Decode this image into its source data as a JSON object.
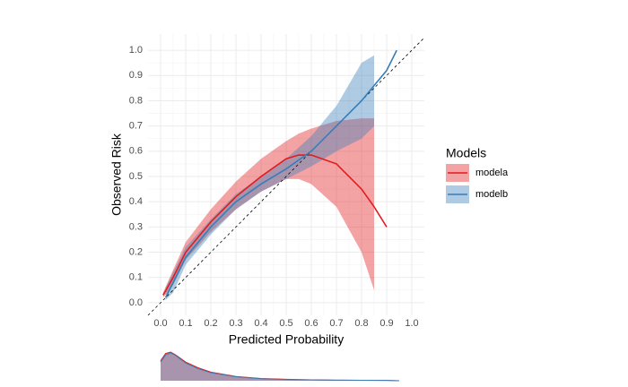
{
  "chart_data": {
    "type": "line",
    "x_label": "Predicted Probability",
    "y_label": "Observed Risk",
    "legend_title": "Models",
    "legend": "right",
    "grid": true,
    "xlim": [
      -0.05,
      1.05
    ],
    "ylim": [
      -0.05,
      1.05
    ],
    "xticks": [
      {
        "value": 0,
        "label": "0.0"
      },
      0.1,
      0.2,
      0.3,
      0.4,
      0.5,
      0.6,
      0.7,
      0.8,
      0.9,
      {
        "value": 1,
        "label": "1.0"
      }
    ],
    "yticks": [
      {
        "value": 0,
        "label": "0.0"
      },
      0.1,
      0.2,
      0.3,
      0.4,
      0.5,
      0.6,
      0.7,
      0.8,
      0.9,
      {
        "value": 1,
        "label": "1.0"
      }
    ],
    "series": [
      {
        "name": "modela",
        "color": "#e41a1c",
        "x": [
          0.01,
          0.05,
          0.1,
          0.2,
          0.3,
          0.4,
          0.5,
          0.55,
          0.6,
          0.7,
          0.8,
          0.85,
          0.9
        ],
        "values": [
          0.03,
          0.1,
          0.2,
          0.32,
          0.42,
          0.5,
          0.57,
          0.585,
          0.585,
          0.55,
          0.45,
          0.38,
          0.3
        ],
        "lower": [
          0.02,
          0.07,
          0.17,
          0.28,
          0.37,
          0.44,
          0.49,
          0.49,
          0.47,
          0.38,
          0.2,
          0.05,
          null
        ],
        "upper": [
          0.04,
          0.13,
          0.24,
          0.37,
          0.48,
          0.57,
          0.64,
          0.67,
          0.69,
          0.72,
          0.73,
          0.73,
          null
        ]
      },
      {
        "name": "modelb",
        "color": "#377eb8",
        "x": [
          0.02,
          0.05,
          0.1,
          0.2,
          0.3,
          0.4,
          0.5,
          0.6,
          0.7,
          0.8,
          0.85,
          0.9,
          0.94
        ],
        "values": [
          0.02,
          0.08,
          0.18,
          0.3,
          0.4,
          0.47,
          0.53,
          0.6,
          0.7,
          0.8,
          0.86,
          0.92,
          1.0
        ],
        "lower": [
          0.01,
          0.04,
          0.15,
          0.27,
          0.37,
          0.44,
          0.49,
          0.54,
          0.6,
          0.65,
          0.7,
          null,
          null
        ],
        "upper": [
          0.06,
          0.12,
          0.22,
          0.33,
          0.43,
          0.5,
          0.57,
          0.66,
          0.78,
          0.95,
          0.98,
          null,
          null
        ]
      }
    ],
    "density": {
      "ylim": [
        0,
        1
      ],
      "x": [
        0,
        0.02,
        0.04,
        0.06,
        0.1,
        0.15,
        0.2,
        0.3,
        0.4,
        0.5,
        0.6,
        0.7,
        0.8,
        0.9,
        0.95
      ],
      "series": [
        {
          "name": "modela",
          "color": "#e41a1c",
          "values": [
            0.7,
            0.95,
            1,
            0.9,
            0.65,
            0.45,
            0.3,
            0.15,
            0.08,
            0.05,
            0.03,
            0.02,
            0.015,
            0.01,
            0
          ]
        },
        {
          "name": "modelb",
          "color": "#377eb8",
          "values": [
            0.65,
            0.9,
            0.97,
            0.88,
            0.62,
            0.42,
            0.28,
            0.14,
            0.07,
            0.04,
            0.03,
            0.02,
            0.015,
            0.01,
            0
          ]
        }
      ]
    }
  }
}
